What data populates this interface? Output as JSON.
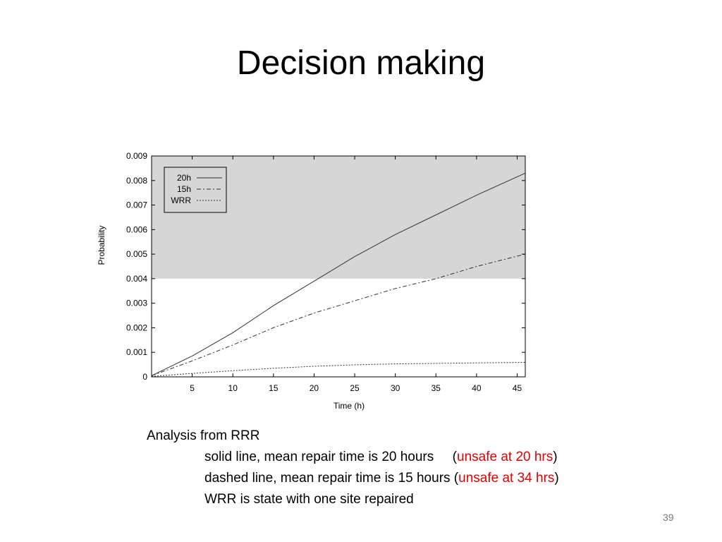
{
  "slide": {
    "title": "Decision making",
    "page_number": "39"
  },
  "caption": {
    "heading": "Analysis from  RRR",
    "line1_text": "solid line, mean repair time is 20 hours",
    "line1_gap": "     (",
    "line1_red": "unsafe at 20 hrs",
    "line1_close": ")",
    "line2_text": "dashed line, mean repair time is 15 hours (",
    "line2_red": "unsafe at 34 hrs",
    "line2_close": ")",
    "line3_text": "WRR is state with one site repaired",
    "highlight_color": "#e30000"
  },
  "chart_data": {
    "type": "line",
    "xlabel": "Time (h)",
    "ylabel": "Probability",
    "xlim": [
      0,
      46
    ],
    "ylim": [
      0,
      0.009
    ],
    "x_ticks": [
      5,
      10,
      15,
      20,
      25,
      30,
      35,
      40,
      45
    ],
    "y_ticks": [
      "0",
      "0.001",
      "0.002",
      "0.003",
      "0.004",
      "0.005",
      "0.006",
      "0.007",
      "0.008",
      "0.009"
    ],
    "shaded_region": {
      "y_from": 0.004,
      "y_to": 0.009,
      "color": "#d6d6d6"
    },
    "legend_position": "top-left",
    "grid": false,
    "series": [
      {
        "name": "20h",
        "style": "solid",
        "x": [
          0,
          5,
          10,
          15,
          20,
          25,
          30,
          35,
          40,
          46
        ],
        "y": [
          5e-05,
          0.00085,
          0.0018,
          0.0029,
          0.0039,
          0.0049,
          0.0058,
          0.0066,
          0.0074,
          0.0083
        ]
      },
      {
        "name": "15h",
        "style": "dashdot",
        "x": [
          0,
          5,
          10,
          15,
          20,
          25,
          30,
          35,
          40,
          46
        ],
        "y": [
          5e-05,
          0.00065,
          0.0013,
          0.002,
          0.0026,
          0.0031,
          0.0036,
          0.004,
          0.0045,
          0.005
        ]
      },
      {
        "name": "WRR",
        "style": "dotted",
        "x": [
          0,
          5,
          10,
          15,
          20,
          25,
          30,
          35,
          40,
          46
        ],
        "y": [
          2e-05,
          0.00014,
          0.00025,
          0.00035,
          0.00043,
          0.00049,
          0.00053,
          0.00055,
          0.00057,
          0.00059
        ]
      }
    ]
  }
}
